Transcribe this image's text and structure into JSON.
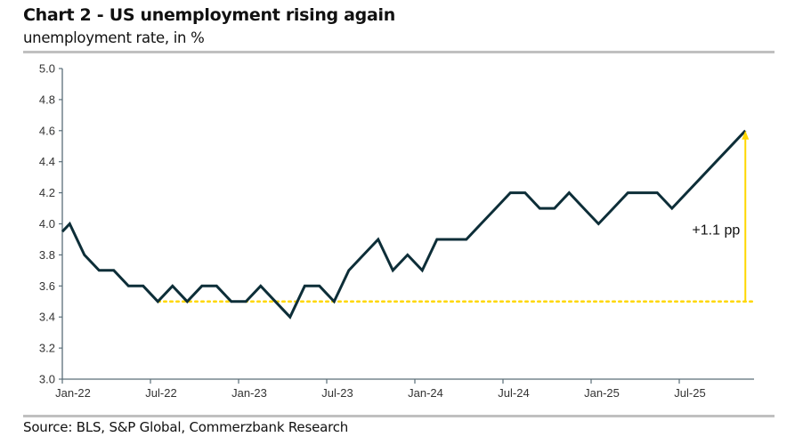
{
  "title": "Chart 2 - US unemployment rising again",
  "subtitle": "unemployment rate, in %",
  "source": "Source: BLS, S&P Global, Commerzbank Research",
  "chart_data": {
    "type": "line",
    "title": "Chart 2 - US unemployment rising again",
    "ylabel": "unemployment rate, in %",
    "ylim": [
      3.0,
      5.0
    ],
    "yticks": [
      "3.0",
      "3.2",
      "3.4",
      "3.6",
      "3.8",
      "4.0",
      "4.2",
      "4.4",
      "4.6",
      "4.8",
      "5.0"
    ],
    "xticks": [
      "Jan-22",
      "Jul-22",
      "Jan-23",
      "Jul-23",
      "Jan-24",
      "Jul-24",
      "Jan-25",
      "Jul-25"
    ],
    "x_start": "Jan-22",
    "x_end": "Nov-25",
    "grid": false,
    "series": [
      {
        "color": "#0d2e38",
        "values": [
          4.0,
          3.8,
          3.7,
          3.7,
          3.6,
          3.6,
          3.5,
          3.6,
          3.5,
          3.6,
          3.6,
          3.5,
          3.5,
          3.6,
          3.5,
          3.4,
          3.6,
          3.6,
          3.5,
          3.7,
          3.8,
          3.9,
          3.7,
          3.8,
          3.7,
          3.9,
          3.9,
          3.9,
          4.0,
          4.1,
          4.2,
          4.2,
          4.1,
          4.1,
          4.2,
          4.1,
          4.0,
          4.1,
          4.2,
          4.2,
          4.2,
          4.1,
          4.2,
          4.3,
          4.4,
          4.5,
          4.6
        ]
      }
    ],
    "reference_line": {
      "value": 3.5,
      "from": "Jul-22",
      "style": "dotted",
      "color": "#ffd700"
    },
    "annotation": {
      "text": "+1.1 pp",
      "from_value": 3.5,
      "to_value": 4.6,
      "at": "Nov-25",
      "color": "#ffd700"
    }
  }
}
